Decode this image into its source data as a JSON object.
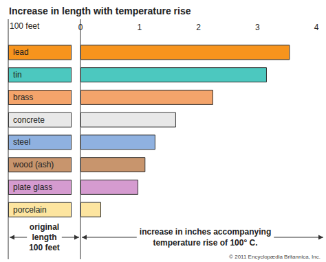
{
  "chart_data": {
    "type": "bar",
    "orientation": "horizontal",
    "title": "Increase in length with temperature rise",
    "categories": [
      "lead",
      "tin",
      "brass",
      "concrete",
      "steel",
      "wood (ash)",
      "plate glass",
      "porcelain"
    ],
    "values": [
      3.55,
      3.16,
      2.25,
      1.62,
      1.27,
      1.1,
      0.98,
      0.35
    ],
    "colors": [
      "#f7941d",
      "#4cc8bf",
      "#f4a46b",
      "#e8e8e8",
      "#8fb1e0",
      "#c8956d",
      "#d59bd0",
      "#fde5a0"
    ],
    "xlim": [
      0,
      4
    ],
    "xticks": [
      0,
      1,
      2,
      3,
      4
    ],
    "xlabel": "increase in inches accompanying\ntemperature rise of 100° C.",
    "annotations": [
      "100 feet",
      "original\nlength\n100 feet",
      "© 2011 Encyclopædia Britannica, Inc."
    ],
    "grid": false
  }
}
